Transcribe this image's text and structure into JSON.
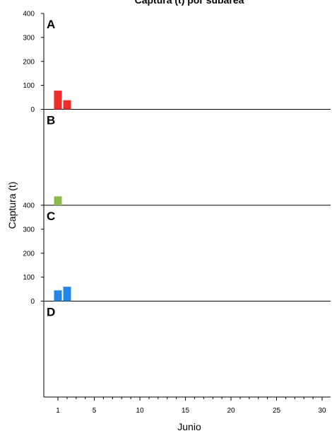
{
  "chart_data": {
    "type": "bar",
    "title": "Captura (t) por subárea",
    "xlabel": "Junio",
    "ylabel": "Captura (t)",
    "xlim": [
      0,
      31
    ],
    "ylim": [
      0,
      400
    ],
    "x_ticks": [
      1,
      5,
      10,
      15,
      20,
      25,
      30
    ],
    "y_ticks": [
      0,
      100,
      200,
      300,
      400
    ],
    "grid": false,
    "panels": [
      {
        "label": "A",
        "color": "#ef2b2b",
        "show_y_ticks": true,
        "bars": [
          {
            "x": 1,
            "value": 78
          },
          {
            "x": 2,
            "value": 38
          }
        ]
      },
      {
        "label": "B",
        "color": "#8cbd4b",
        "show_y_ticks": false,
        "bars": [
          {
            "x": 1,
            "value": 37
          }
        ]
      },
      {
        "label": "C",
        "color": "#2385e6",
        "show_y_ticks": true,
        "bars": [
          {
            "x": 1,
            "value": 45
          },
          {
            "x": 2,
            "value": 60
          }
        ]
      },
      {
        "label": "D",
        "color": "#888888",
        "show_y_ticks": false,
        "bars": []
      }
    ]
  }
}
